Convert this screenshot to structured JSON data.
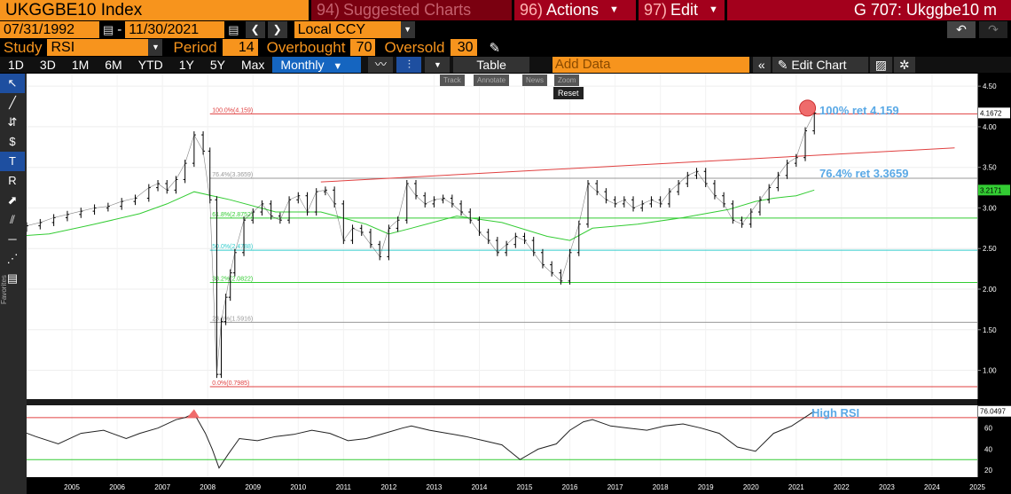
{
  "header": {
    "ticker": "UKGGBE10 Index",
    "suggested_num": "94)",
    "suggested_label": "Suggested Charts",
    "actions_num": "96)",
    "actions_label": "Actions",
    "edit_num": "97)",
    "edit_label": "Edit",
    "page_title": "G 707: Ukggbe10 m"
  },
  "daterange": {
    "start": "07/31/1992",
    "sep": "-",
    "end": "11/30/2021",
    "currency": "Local CCY"
  },
  "study": {
    "study_label": "Study",
    "study_value": "RSI",
    "period_label": "Period",
    "period_value": "14",
    "overbought_label": "Overbought",
    "overbought_value": "70",
    "oversold_label": "Oversold",
    "oversold_value": "30"
  },
  "toolbar": {
    "periods": [
      "1D",
      "3D",
      "1M",
      "6M",
      "YTD",
      "1Y",
      "5Y",
      "Max"
    ],
    "frequency": "Monthly",
    "table_label": "Table",
    "add_data_placeholder": "Add Data",
    "edit_chart_label": "Edit Chart"
  },
  "mini_toolbar": {
    "track": "Track",
    "annotate": "Annotate",
    "news": "News",
    "zoom": "Zoom",
    "reset": "Reset"
  },
  "side": {
    "favorites": "Favorites"
  },
  "annotations": {
    "top_retrace": "100% ret 4.159",
    "mid_retrace": "76.4% ret 3.3659",
    "high_rsi": "High RSI"
  },
  "colors": {
    "bloomberg_orange": "#f7941d",
    "bloomberg_red": "#a3001c",
    "selected_blue": "#1565c0",
    "price_line": "#000000",
    "moving_average": "#33cc33",
    "trendline": "#e04040",
    "annotation_blue": "#5aa9e6"
  },
  "chart_data": [
    {
      "type": "line",
      "title": "",
      "ylim": [
        0.7,
        4.6
      ],
      "y_ticks": [
        "1.00",
        "1.50",
        "2.00",
        "2.50",
        "3.00",
        "3.50",
        "4.00",
        "4.50"
      ],
      "x_ticks": [
        "2005",
        "2006",
        "2007",
        "2008",
        "2009",
        "2010",
        "2011",
        "2012",
        "2013",
        "2014",
        "2015",
        "2016",
        "2017",
        "2018",
        "2019",
        "2020",
        "2021",
        "2022",
        "2023",
        "2024",
        "2025"
      ],
      "last_value_label": "4.1672",
      "ma_value_label": "3.2171",
      "retracement_levels": [
        {
          "label": "100.0%(4.159)",
          "value": 4.159,
          "color": "#e04040"
        },
        {
          "label": "76.4%(3.3659)",
          "value": 3.3659,
          "color": "#999999"
        },
        {
          "label": "61.8%(2.8752)",
          "value": 2.8752,
          "color": "#33cc33"
        },
        {
          "label": "50.0%(2.4788)",
          "value": 2.4788,
          "color": "#33cccc"
        },
        {
          "label": "38.2%(2.0822)",
          "value": 2.0822,
          "color": "#33cc33"
        },
        {
          "label": "23.6%(1.5916)",
          "value": 1.5916,
          "color": "#999999"
        },
        {
          "label": "0.0%(0.7985)",
          "value": 0.7985,
          "color": "#e04040"
        }
      ],
      "trendline": {
        "x": [
          2011.0,
          2025.0
        ],
        "y": [
          3.32,
          3.74
        ]
      },
      "series": [
        {
          "role": "price",
          "x": [
            2004.2,
            2004.5,
            2004.8,
            2005.1,
            2005.4,
            2005.7,
            2006.0,
            2006.3,
            2006.6,
            2006.9,
            2007.2,
            2007.4,
            2007.6,
            2007.8,
            2008.0,
            2008.2,
            2008.4,
            2008.55,
            2008.7,
            2008.8,
            2008.9,
            2009.0,
            2009.1,
            2009.3,
            2009.5,
            2009.7,
            2009.9,
            2010.1,
            2010.3,
            2010.5,
            2010.7,
            2010.9,
            2011.1,
            2011.3,
            2011.5,
            2011.7,
            2011.9,
            2012.1,
            2012.3,
            2012.5,
            2012.7,
            2012.9,
            2013.1,
            2013.3,
            2013.5,
            2013.7,
            2013.9,
            2014.1,
            2014.3,
            2014.5,
            2014.7,
            2014.9,
            2015.1,
            2015.3,
            2015.5,
            2015.7,
            2015.9,
            2016.1,
            2016.3,
            2016.5,
            2016.7,
            2016.9,
            2017.1,
            2017.3,
            2017.5,
            2017.7,
            2017.9,
            2018.1,
            2018.3,
            2018.5,
            2018.7,
            2018.9,
            2019.1,
            2019.3,
            2019.5,
            2019.7,
            2019.9,
            2020.1,
            2020.3,
            2020.5,
            2020.7,
            2020.9,
            2021.1,
            2021.3,
            2021.5,
            2021.7,
            2021.9
          ],
          "y": [
            2.75,
            2.78,
            2.82,
            2.88,
            2.92,
            2.96,
            3.0,
            3.02,
            3.08,
            3.12,
            3.25,
            3.3,
            3.22,
            3.35,
            3.55,
            3.9,
            3.7,
            3.1,
            0.95,
            1.6,
            1.9,
            2.2,
            2.45,
            2.85,
            2.95,
            3.05,
            2.9,
            2.85,
            3.1,
            3.15,
            2.95,
            3.2,
            3.22,
            3.05,
            2.6,
            2.75,
            2.7,
            2.55,
            2.4,
            2.75,
            2.85,
            3.3,
            3.15,
            3.05,
            3.1,
            3.12,
            3.05,
            2.95,
            2.85,
            2.7,
            2.6,
            2.45,
            2.55,
            2.65,
            2.6,
            2.45,
            2.3,
            2.2,
            2.1,
            2.45,
            2.8,
            3.3,
            3.2,
            3.1,
            3.05,
            3.1,
            3.0,
            3.05,
            3.1,
            3.05,
            3.2,
            3.3,
            3.4,
            3.45,
            3.3,
            3.15,
            3.05,
            2.85,
            2.8,
            2.95,
            3.1,
            3.25,
            3.4,
            3.55,
            3.62,
            3.95,
            4.17
          ]
        },
        {
          "role": "moving_average",
          "x": [
            2004.2,
            2005.0,
            2006.0,
            2007.0,
            2007.6,
            2008.2,
            2009.0,
            2010.0,
            2011.0,
            2012.0,
            2012.5,
            2013.0,
            2014.0,
            2015.0,
            2016.0,
            2016.5,
            2017.0,
            2018.0,
            2019.0,
            2020.0,
            2020.6,
            2021.0,
            2021.5,
            2021.9
          ],
          "y": [
            2.65,
            2.68,
            2.8,
            2.93,
            3.05,
            3.2,
            3.1,
            2.95,
            2.95,
            2.8,
            2.68,
            2.75,
            2.9,
            2.82,
            2.65,
            2.6,
            2.75,
            2.8,
            2.88,
            2.98,
            3.08,
            3.12,
            3.15,
            3.22
          ]
        }
      ]
    },
    {
      "type": "line",
      "title": "",
      "ylim": [
        15,
        80
      ],
      "y_ticks": [
        "20",
        "40",
        "60"
      ],
      "overbought": 70,
      "oversold": 30,
      "last_value_label": "76.0497",
      "series": [
        {
          "role": "rsi",
          "x": [
            2004.2,
            2004.7,
            2005.2,
            2005.7,
            2006.2,
            2006.7,
            2007.0,
            2007.4,
            2007.8,
            2008.0,
            2008.2,
            2008.45,
            2008.6,
            2008.75,
            2008.95,
            2009.2,
            2009.6,
            2010.0,
            2010.4,
            2010.8,
            2011.2,
            2011.6,
            2012.0,
            2012.4,
            2012.8,
            2013.0,
            2013.4,
            2013.8,
            2014.2,
            2014.6,
            2015.0,
            2015.4,
            2015.8,
            2016.2,
            2016.5,
            2016.8,
            2017.0,
            2017.4,
            2017.8,
            2018.2,
            2018.6,
            2019.0,
            2019.4,
            2019.8,
            2020.2,
            2020.6,
            2021.0,
            2021.4,
            2021.9
          ],
          "y": [
            60,
            52,
            45,
            55,
            58,
            50,
            55,
            60,
            68,
            70,
            74,
            55,
            40,
            22,
            35,
            50,
            48,
            52,
            54,
            58,
            55,
            48,
            50,
            55,
            60,
            62,
            58,
            55,
            52,
            48,
            44,
            30,
            40,
            45,
            58,
            66,
            68,
            62,
            60,
            58,
            62,
            64,
            60,
            55,
            42,
            38,
            55,
            62,
            76
          ]
        }
      ]
    }
  ]
}
